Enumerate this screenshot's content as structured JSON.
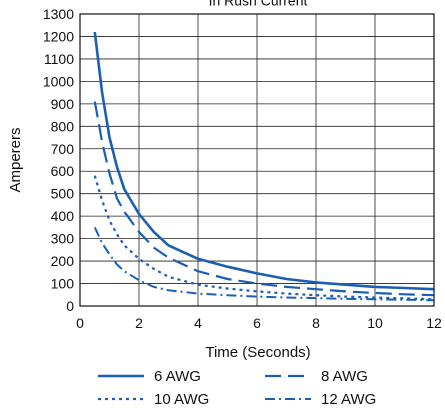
{
  "chart_data": {
    "type": "line",
    "title": "In Rush Current",
    "xlabel": "Time (Seconds)",
    "ylabel": "Amperers",
    "xlim": [
      0,
      12
    ],
    "ylim": [
      0,
      1300
    ],
    "x_ticks": [
      0,
      2,
      4,
      6,
      8,
      10,
      12
    ],
    "y_ticks": [
      0,
      100,
      200,
      300,
      400,
      500,
      600,
      700,
      800,
      900,
      1000,
      1100,
      1200,
      1300
    ],
    "grid": true,
    "legend_position": "bottom",
    "series_color": "#1a5fb4",
    "series": [
      {
        "name": "6 AWG",
        "line_style": "solid",
        "x": [
          0.5,
          0.75,
          1.0,
          1.25,
          1.5,
          2.0,
          2.5,
          3.0,
          4.0,
          5.0,
          6.0,
          7.0,
          8.0,
          9.0,
          10.0,
          11.0,
          12.0
        ],
        "y": [
          1220,
          950,
          750,
          620,
          520,
          410,
          330,
          270,
          210,
          175,
          145,
          120,
          105,
          95,
          85,
          80,
          75
        ]
      },
      {
        "name": "8 AWG",
        "line_style": "dashed",
        "x": [
          0.5,
          0.75,
          1.0,
          1.25,
          1.5,
          2.0,
          2.5,
          3.0,
          4.0,
          5.0,
          6.0,
          7.0,
          8.0,
          9.0,
          10.0,
          11.0,
          12.0
        ],
        "y": [
          910,
          730,
          590,
          480,
          420,
          330,
          260,
          215,
          155,
          120,
          100,
          85,
          75,
          65,
          58,
          52,
          48
        ]
      },
      {
        "name": "10 AWG",
        "line_style": "dotted",
        "x": [
          0.5,
          0.75,
          1.0,
          1.25,
          1.5,
          2.0,
          2.5,
          3.0,
          4.0,
          5.0,
          6.0,
          7.0,
          8.0,
          9.0,
          10.0,
          11.0,
          12.0
        ],
        "y": [
          580,
          470,
          380,
          320,
          270,
          210,
          165,
          130,
          95,
          78,
          65,
          55,
          48,
          42,
          38,
          34,
          30
        ]
      },
      {
        "name": "12 AWG",
        "line_style": "dashdot",
        "x": [
          0.5,
          0.75,
          1.0,
          1.25,
          1.5,
          2.0,
          2.5,
          3.0,
          4.0,
          5.0,
          6.0,
          7.0,
          8.0,
          9.0,
          10.0,
          11.0,
          12.0
        ],
        "y": [
          350,
          280,
          230,
          185,
          155,
          115,
          85,
          70,
          55,
          48,
          42,
          38,
          35,
          32,
          30,
          28,
          26
        ]
      }
    ]
  }
}
